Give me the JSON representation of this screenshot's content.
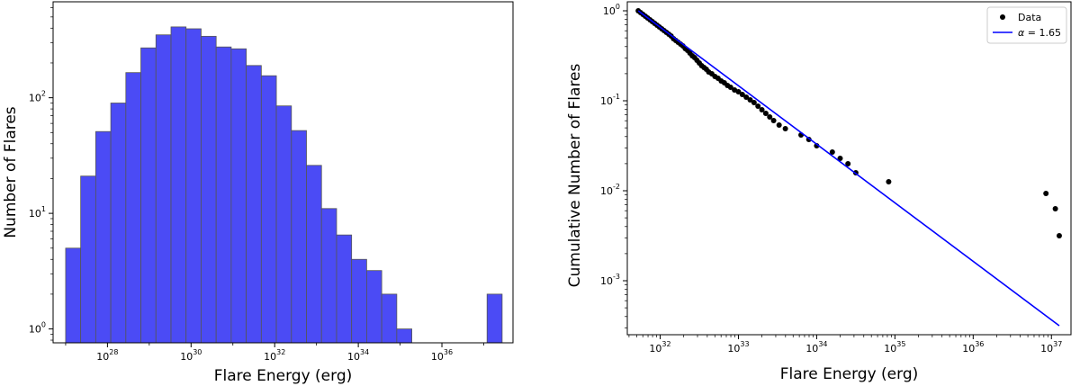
{
  "chart_data": [
    {
      "type": "bar",
      "xlabel": "Flare Energy (erg)",
      "ylabel": "Number of Flares",
      "x_scale": "log",
      "y_scale": "log",
      "xlim_log10": [
        26.7,
        37.7
      ],
      "ylim_log10": [
        -0.12,
        2.83
      ],
      "x_ticks": [
        {
          "base": "10",
          "exp": "28",
          "log10": 28
        },
        {
          "base": "10",
          "exp": "30",
          "log10": 30
        },
        {
          "base": "10",
          "exp": "32",
          "log10": 32
        },
        {
          "base": "10",
          "exp": "34",
          "log10": 34
        },
        {
          "base": "10",
          "exp": "36",
          "log10": 36
        }
      ],
      "y_ticks": [
        {
          "base": "10",
          "exp": "0",
          "log10": 0
        },
        {
          "base": "10",
          "exp": "1",
          "log10": 1
        },
        {
          "base": "10",
          "exp": "2",
          "log10": 2
        }
      ],
      "bar_color": "#4b4bf5",
      "bar_edge_color": "#555555",
      "bins": [
        {
          "lo": 27.0,
          "hi": 27.36,
          "count": 5
        },
        {
          "lo": 27.36,
          "hi": 27.72,
          "count": 21
        },
        {
          "lo": 27.72,
          "hi": 28.08,
          "count": 51
        },
        {
          "lo": 28.08,
          "hi": 28.44,
          "count": 90
        },
        {
          "lo": 28.44,
          "hi": 28.8,
          "count": 165
        },
        {
          "lo": 28.8,
          "hi": 29.16,
          "count": 270
        },
        {
          "lo": 29.16,
          "hi": 29.52,
          "count": 350
        },
        {
          "lo": 29.52,
          "hi": 29.88,
          "count": 410
        },
        {
          "lo": 29.88,
          "hi": 30.24,
          "count": 395
        },
        {
          "lo": 30.24,
          "hi": 30.6,
          "count": 340
        },
        {
          "lo": 30.6,
          "hi": 30.96,
          "count": 275
        },
        {
          "lo": 30.96,
          "hi": 31.32,
          "count": 265
        },
        {
          "lo": 31.32,
          "hi": 31.68,
          "count": 190
        },
        {
          "lo": 31.68,
          "hi": 32.04,
          "count": 155
        },
        {
          "lo": 32.04,
          "hi": 32.4,
          "count": 85
        },
        {
          "lo": 32.4,
          "hi": 32.76,
          "count": 52
        },
        {
          "lo": 32.76,
          "hi": 33.12,
          "count": 26
        },
        {
          "lo": 33.12,
          "hi": 33.48,
          "count": 11
        },
        {
          "lo": 33.48,
          "hi": 33.84,
          "count": 6.5
        },
        {
          "lo": 33.84,
          "hi": 34.2,
          "count": 4
        },
        {
          "lo": 34.2,
          "hi": 34.56,
          "count": 3.2
        },
        {
          "lo": 34.56,
          "hi": 34.92,
          "count": 2
        },
        {
          "lo": 34.92,
          "hi": 35.28,
          "count": 1
        },
        {
          "lo": 37.08,
          "hi": 37.44,
          "count": 2
        }
      ]
    },
    {
      "type": "scatter",
      "xlabel": "Flare Energy (erg)",
      "ylabel": "Cumulative Number of Flares",
      "x_scale": "log",
      "y_scale": "log",
      "xlim_log10": [
        31.58,
        37.25
      ],
      "ylim_log10": [
        -3.6,
        0.1
      ],
      "x_ticks": [
        {
          "base": "10",
          "exp": "32",
          "log10": 32
        },
        {
          "base": "10",
          "exp": "33",
          "log10": 33
        },
        {
          "base": "10",
          "exp": "34",
          "log10": 34
        },
        {
          "base": "10",
          "exp": "35",
          "log10": 35
        },
        {
          "base": "10",
          "exp": "36",
          "log10": 36
        },
        {
          "base": "10",
          "exp": "37",
          "log10": 37
        }
      ],
      "y_ticks": [
        {
          "base": "10",
          "exp": "0",
          "log10": 0
        },
        {
          "base": "10",
          "exp": "-1",
          "log10": -1
        },
        {
          "base": "10",
          "exp": "-2",
          "log10": -2
        },
        {
          "base": "10",
          "exp": "-3",
          "log10": -3
        }
      ],
      "legend": {
        "position": "top-right",
        "data_label": "Data",
        "fit_label_symbol": "α",
        "fit_label_value": " = 1.65"
      },
      "point_color": "#000000",
      "line_color": "#0000ff",
      "fit_line": {
        "log10_x": [
          31.72,
          37.1
        ],
        "log10_y": [
          0.0,
          -3.5
        ]
      },
      "points_log10": [
        [
          31.72,
          0.0
        ],
        [
          31.75,
          -0.02
        ],
        [
          31.78,
          -0.04
        ],
        [
          31.81,
          -0.06
        ],
        [
          31.84,
          -0.08
        ],
        [
          31.87,
          -0.1
        ],
        [
          31.9,
          -0.12
        ],
        [
          31.93,
          -0.14
        ],
        [
          31.96,
          -0.16
        ],
        [
          31.99,
          -0.18
        ],
        [
          32.02,
          -0.2
        ],
        [
          32.05,
          -0.22
        ],
        [
          32.08,
          -0.24
        ],
        [
          32.11,
          -0.26
        ],
        [
          32.14,
          -0.28
        ],
        [
          32.17,
          -0.31
        ],
        [
          32.2,
          -0.33
        ],
        [
          32.23,
          -0.35
        ],
        [
          32.26,
          -0.37
        ],
        [
          32.29,
          -0.39
        ],
        [
          32.32,
          -0.42
        ],
        [
          32.35,
          -0.44
        ],
        [
          32.38,
          -0.47
        ],
        [
          32.41,
          -0.5
        ],
        [
          32.44,
          -0.52
        ],
        [
          32.47,
          -0.55
        ],
        [
          32.5,
          -0.58
        ],
        [
          32.53,
          -0.61
        ],
        [
          32.56,
          -0.63
        ],
        [
          32.59,
          -0.65
        ],
        [
          32.62,
          -0.68
        ],
        [
          32.66,
          -0.7
        ],
        [
          32.7,
          -0.73
        ],
        [
          32.74,
          -0.75
        ],
        [
          32.78,
          -0.78
        ],
        [
          32.82,
          -0.8
        ],
        [
          32.86,
          -0.83
        ],
        [
          32.9,
          -0.85
        ],
        [
          32.95,
          -0.88
        ],
        [
          33.0,
          -0.9
        ],
        [
          33.05,
          -0.93
        ],
        [
          33.1,
          -0.96
        ],
        [
          33.15,
          -0.99
        ],
        [
          33.2,
          -1.02
        ],
        [
          33.25,
          -1.06
        ],
        [
          33.3,
          -1.1
        ],
        [
          33.35,
          -1.14
        ],
        [
          33.4,
          -1.18
        ],
        [
          33.45,
          -1.22
        ],
        [
          33.52,
          -1.27
        ],
        [
          33.6,
          -1.31
        ],
        [
          33.8,
          -1.38
        ],
        [
          33.9,
          -1.43
        ],
        [
          34.0,
          -1.5
        ],
        [
          34.2,
          -1.57
        ],
        [
          34.3,
          -1.64
        ],
        [
          34.4,
          -1.7
        ],
        [
          34.5,
          -1.8
        ],
        [
          34.92,
          -1.9
        ],
        [
          36.93,
          -2.03
        ],
        [
          37.05,
          -2.2
        ],
        [
          37.1,
          -2.5
        ]
      ]
    }
  ]
}
